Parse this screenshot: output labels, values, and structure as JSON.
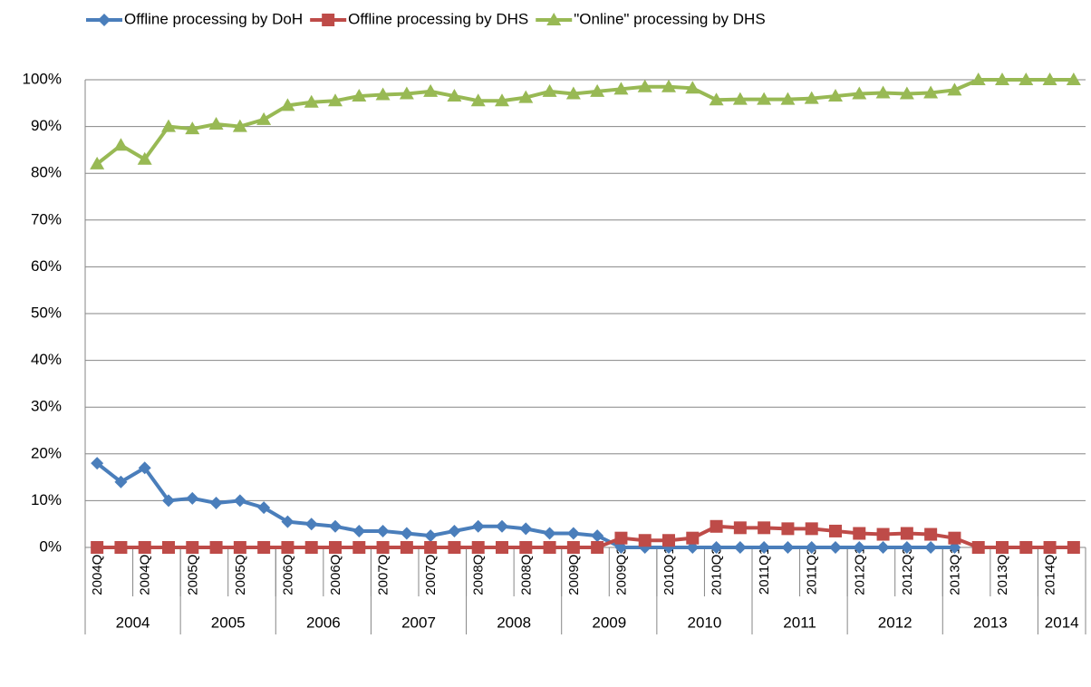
{
  "chart_data": {
    "type": "line",
    "categories": [
      "2004Q1",
      null,
      "2004Q3",
      null,
      "2005Q1",
      null,
      "2005Q3",
      null,
      "2006Q1",
      null,
      "2006Q3",
      null,
      "2007Q1",
      null,
      "2007Q3",
      null,
      "2008Q1",
      null,
      "2008Q3",
      null,
      "2009Q1",
      null,
      "2009Q3",
      null,
      "2010Q1",
      null,
      "2010Q3",
      null,
      "2011Q1",
      null,
      "2011Q3",
      null,
      "2012Q1",
      null,
      "2012Q3",
      null,
      "2013Q1",
      null,
      "2013Q3",
      null,
      "2014Q1",
      null
    ],
    "x_groups": [
      {
        "label": "2004",
        "count": 4
      },
      {
        "label": "2005",
        "count": 4
      },
      {
        "label": "2006",
        "count": 4
      },
      {
        "label": "2007",
        "count": 4
      },
      {
        "label": "2008",
        "count": 4
      },
      {
        "label": "2009",
        "count": 4
      },
      {
        "label": "2010",
        "count": 4
      },
      {
        "label": "2011",
        "count": 4
      },
      {
        "label": "2012",
        "count": 4
      },
      {
        "label": "2013",
        "count": 4
      },
      {
        "label": "2014",
        "count": 2
      }
    ],
    "series": [
      {
        "name": "Offline processing by DoH",
        "color": "#4a7ebb",
        "marker": "diamond",
        "values": [
          18,
          14,
          17,
          10,
          10.5,
          9.5,
          10,
          8.5,
          5.5,
          5,
          4.5,
          3.5,
          3.5,
          3,
          2.5,
          3.5,
          4.5,
          4.5,
          4,
          3,
          3,
          2.5,
          0,
          0,
          0,
          0,
          0,
          0,
          0,
          0,
          0,
          0,
          0,
          0,
          0,
          0,
          0,
          null,
          null,
          null,
          null,
          null
        ]
      },
      {
        "name": "Offline processing by DHS",
        "color": "#be4b48",
        "marker": "square",
        "values": [
          0,
          0,
          0,
          0,
          0,
          0,
          0,
          0,
          0,
          0,
          0,
          0,
          0,
          0,
          0,
          0,
          0,
          0,
          0,
          0,
          0,
          0,
          2,
          1.5,
          1.5,
          2,
          4.5,
          4.2,
          4.2,
          4,
          4,
          3.5,
          3,
          2.8,
          3,
          2.8,
          2,
          0,
          0,
          0,
          0,
          0
        ]
      },
      {
        "name": "\"Online\" processing by DHS",
        "color": "#98b954",
        "marker": "triangle",
        "values": [
          82,
          86,
          83,
          90,
          89.5,
          90.5,
          90,
          91.5,
          94.5,
          95.2,
          95.5,
          96.5,
          96.8,
          97,
          97.5,
          96.5,
          95.5,
          95.5,
          96.2,
          97.5,
          97,
          97.5,
          98,
          98.5,
          98.5,
          98.2,
          95.7,
          95.8,
          95.8,
          95.8,
          96,
          96.5,
          97,
          97.2,
          97,
          97.2,
          97.8,
          100,
          100,
          100,
          100,
          100
        ]
      }
    ],
    "ylim": [
      0,
      100
    ],
    "yticks": [
      {
        "value": 0,
        "label": "0%"
      },
      {
        "value": 10,
        "label": "10%"
      },
      {
        "value": 20,
        "label": "20%"
      },
      {
        "value": 30,
        "label": "30%"
      },
      {
        "value": 40,
        "label": "40%"
      },
      {
        "value": 50,
        "label": "50%"
      },
      {
        "value": 60,
        "label": "60%"
      },
      {
        "value": 70,
        "label": "70%"
      },
      {
        "value": 80,
        "label": "80%"
      },
      {
        "value": 90,
        "label": "90%"
      },
      {
        "value": 100,
        "label": "100%"
      }
    ],
    "grid": true,
    "legend": "top"
  }
}
